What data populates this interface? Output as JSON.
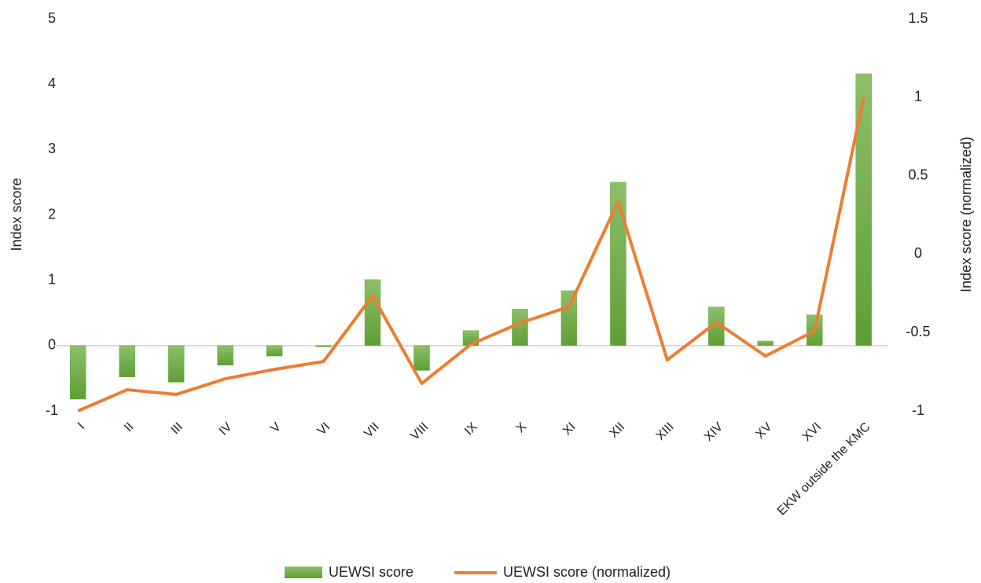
{
  "chart_data": {
    "type": "bar_line",
    "categories": [
      "I",
      "II",
      "III",
      "IV",
      "V",
      "VI",
      "VII",
      "VIII",
      "IX",
      "X",
      "XI",
      "XII",
      "XIII",
      "XIV",
      "XV",
      "XVI",
      "EKW outside the KMC"
    ],
    "series": [
      {
        "name": "UEWSI score",
        "type": "bar",
        "color": "#70ad47",
        "axis": "y",
        "values": [
          -0.82,
          -0.48,
          -0.56,
          -0.3,
          -0.16,
          -0.02,
          1.01,
          -0.38,
          0.23,
          0.56,
          0.84,
          2.5,
          0,
          0.59,
          0.07,
          0.47,
          4.16
        ]
      },
      {
        "name": "UEWSI score (normalized)",
        "type": "line",
        "color": "#ed7d31",
        "axis": "y2",
        "values": [
          -1,
          -0.865,
          -0.895,
          -0.795,
          -0.735,
          -0.685,
          -0.265,
          -0.825,
          -0.575,
          -0.44,
          -0.335,
          0.335,
          -0.675,
          -0.435,
          -0.65,
          -0.49,
          1
        ]
      }
    ],
    "ylabel": "Index score",
    "y2label": "Index score (normalized)",
    "ylim": [
      -1,
      5
    ],
    "yticks": [
      -1,
      0,
      1,
      2,
      3,
      4,
      5
    ],
    "y2lim": [
      -1,
      1.5
    ],
    "y2ticks": [
      -1,
      -0.5,
      0,
      0.5,
      1,
      1.5
    ],
    "legend": "bottom"
  }
}
